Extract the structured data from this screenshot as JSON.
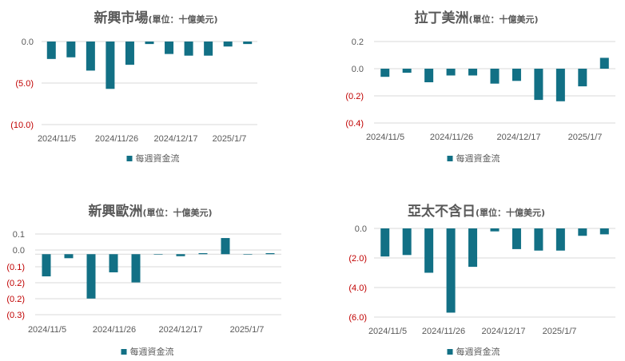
{
  "colors": {
    "bar": "#127085",
    "tick_pos": "#595959",
    "tick_neg": "#C00000",
    "grid": "#D9D9D9",
    "title": "#595959"
  },
  "chart_data": [
    {
      "type": "bar",
      "title": "新興市場",
      "subtitle": "(單位：十億美元)",
      "legend": "每週資金流",
      "legend_position": "bottom",
      "grid": true,
      "ylim": [
        -10,
        0
      ],
      "yticks": [
        "0.0",
        "(5.0)",
        "(10.0)"
      ],
      "xticks": [
        "2024/11/5",
        "2024/11/26",
        "2024/12/17",
        "2025/1/7"
      ],
      "values": [
        -2.1,
        -1.9,
        -3.5,
        -5.7,
        -2.8,
        -0.3,
        -1.5,
        -1.7,
        -1.7,
        -0.6,
        -0.3
      ]
    },
    {
      "type": "bar",
      "title": "拉丁美洲",
      "subtitle": "(單位：十億美元)",
      "legend": "每週資金流",
      "legend_position": "bottom",
      "grid": true,
      "ylim": [
        -0.4,
        0.2
      ],
      "yticks": [
        "0.2",
        "0.0",
        "(0.2)",
        "(0.4)"
      ],
      "xticks": [
        "2024/11/5",
        "2024/11/26",
        "2024/12/17",
        "2025/1/7"
      ],
      "values": [
        -0.06,
        -0.03,
        -0.1,
        -0.05,
        -0.05,
        -0.11,
        -0.09,
        -0.23,
        -0.24,
        -0.13,
        0.08
      ]
    },
    {
      "type": "bar",
      "title": "新興歐洲",
      "subtitle": "(單位：十億美元)",
      "legend": "每週資金流",
      "legend_position": "bottom",
      "grid": true,
      "ylim": [
        -0.3,
        0.1
      ],
      "yticks": [
        "0.1",
        "0.0",
        "(0.1)",
        "(0.2)",
        "(0.2)",
        "(0.3)"
      ],
      "xticks": [
        "2024/11/5",
        "2024/11/26",
        "2024/12/17",
        "2025/1/7"
      ],
      "values": [
        -0.11,
        -0.02,
        -0.22,
        -0.09,
        -0.14,
        0.0,
        -0.01,
        0.005,
        0.08,
        0.0,
        0.005
      ]
    },
    {
      "type": "bar",
      "title": "亞太不含日",
      "subtitle": "(單位：十億美元)",
      "legend": "每週資金流",
      "legend_position": "bottom",
      "grid": true,
      "ylim": [
        -6,
        0
      ],
      "yticks": [
        "0.0",
        "(2.0)",
        "(4.0)",
        "(6.0)"
      ],
      "xticks": [
        "2024/11/5",
        "2024/11/26",
        "2024/12/17",
        "2025/1/7"
      ],
      "values": [
        -1.9,
        -1.8,
        -3.0,
        -5.7,
        -2.6,
        -0.2,
        -1.4,
        -1.5,
        -1.5,
        -0.5,
        -0.4
      ]
    }
  ]
}
